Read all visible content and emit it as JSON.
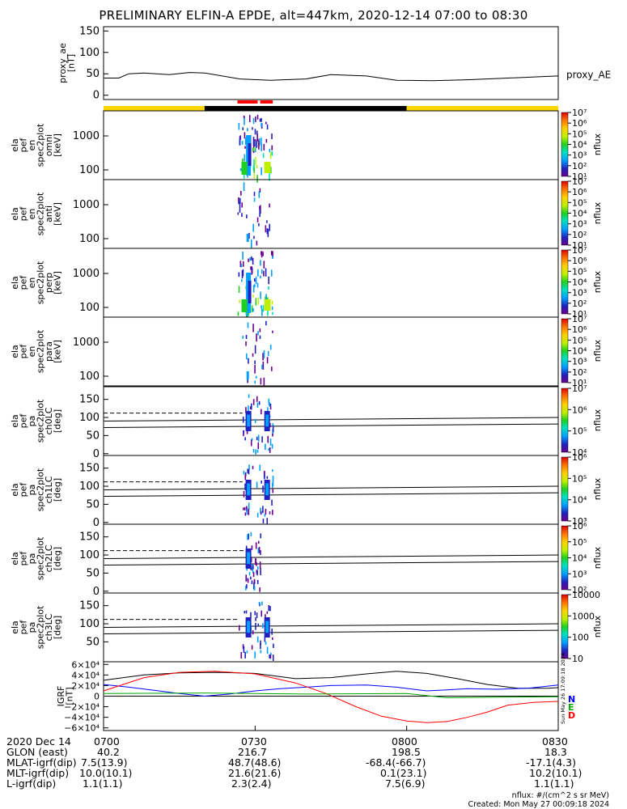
{
  "title": "PRELIMINARY ELFIN-A EPDE, alt=447km, 2020-12-14 07:00 to 08:30",
  "colors": {
    "orbit_day": "#ffd700",
    "orbit_night": "#000000",
    "orbit_flag": "#ff0000",
    "geo_x": "#000000",
    "geo_y": "#0000ff",
    "geo_z": "#ff0000",
    "ref_line": "#00aa00"
  },
  "chart_data": [
    {
      "id": "proxy_ae",
      "type": "line",
      "ylabel": "proxy_ae\n[nT]",
      "legend": "proxy_AE",
      "ylim": [
        -10,
        160
      ],
      "yticks": [
        "0",
        "50",
        "100",
        "150"
      ],
      "ytick_values": [
        0,
        50,
        100,
        150
      ],
      "series": [
        {
          "name": "proxy_AE",
          "x": [
            0,
            3,
            5,
            8,
            13,
            17,
            20,
            27,
            33,
            40,
            45,
            52,
            58,
            65,
            72,
            80,
            88,
            90
          ],
          "y": [
            40,
            40,
            50,
            52,
            48,
            53,
            52,
            38,
            35,
            38,
            48,
            45,
            35,
            34,
            36,
            40,
            44,
            45
          ]
        }
      ]
    },
    {
      "id": "orbit_bar",
      "type": "bar",
      "segments": [
        {
          "from": 0,
          "to": 20,
          "state": "day"
        },
        {
          "from": 20,
          "to": 60,
          "state": "night"
        },
        {
          "from": 60,
          "to": 90,
          "state": "day"
        }
      ],
      "flags": [
        {
          "from": 26.5,
          "to": 30.5
        },
        {
          "from": 31,
          "to": 33.5
        }
      ]
    },
    {
      "id": "en_omni",
      "type": "heatmap",
      "ylabel": "ela\npef\nen\nspec2plot\nomni\n[keV]",
      "yticks": [
        "100",
        "1000"
      ],
      "colorbar": "nflux",
      "cbar_ticks": [
        "10¹",
        "10²",
        "10³",
        "10⁴",
        "10⁵",
        "10⁶",
        "10⁷"
      ],
      "active_x": [
        26.5,
        33.5
      ]
    },
    {
      "id": "en_anti",
      "type": "heatmap",
      "ylabel": "ela\npef\nen\nspec2plot\nanti\n[keV]",
      "yticks": [
        "100",
        "1000"
      ],
      "colorbar": "nflux",
      "cbar_ticks": [
        "10¹",
        "10²",
        "10³",
        "10⁴",
        "10⁵",
        "10⁶",
        "10⁷"
      ],
      "active_x": [
        26.5,
        33.5
      ]
    },
    {
      "id": "en_perp",
      "type": "heatmap",
      "ylabel": "ela\npef\nen\nspec2plot\nperp\n[keV]",
      "yticks": [
        "100",
        "1000"
      ],
      "colorbar": "nflux",
      "cbar_ticks": [
        "10¹",
        "10²",
        "10³",
        "10⁴",
        "10⁵",
        "10⁶",
        "10⁷"
      ],
      "active_x": [
        26.5,
        33.5
      ]
    },
    {
      "id": "en_para",
      "type": "heatmap",
      "ylabel": "ela\npef\nen\nspec2plot\npara\n[keV]",
      "yticks": [
        "100",
        "1000"
      ],
      "colorbar": "nflux",
      "cbar_ticks": [
        "10¹",
        "10²",
        "10³",
        "10⁴",
        "10⁵",
        "10⁶",
        "10⁷"
      ],
      "active_x": [
        26.5,
        33.5
      ]
    },
    {
      "id": "pa_ch0",
      "type": "heatmap",
      "ylabel": "ela\npef\npa\nspec2plot\nch0LC\n[deg]",
      "ylim": [
        -5,
        185
      ],
      "yticks": [
        "0",
        "50",
        "100",
        "150"
      ],
      "ytick_values": [
        0,
        50,
        100,
        150
      ],
      "colorbar": "nflux",
      "cbar_ticks": [
        "10⁴",
        "10⁵",
        "10⁶",
        "10⁷"
      ],
      "lc_lines": {
        "x": [
          0,
          90
        ],
        "upper": [
          90,
          100
        ],
        "lower": [
          72,
          82
        ],
        "dashed_y": 112
      },
      "active_x": [
        27.5,
        33.5
      ]
    },
    {
      "id": "pa_ch1",
      "type": "heatmap",
      "ylabel": "ela\npef\npa\nspec2plot\nch1LC\n[deg]",
      "ylim": [
        -5,
        185
      ],
      "yticks": [
        "0",
        "50",
        "100",
        "150"
      ],
      "ytick_values": [
        0,
        50,
        100,
        150
      ],
      "colorbar": "nflux",
      "cbar_ticks": [
        "10³",
        "10⁴",
        "10⁵",
        "10⁶"
      ],
      "lc_lines": {
        "x": [
          0,
          90
        ],
        "upper": [
          90,
          100
        ],
        "lower": [
          72,
          82
        ],
        "dashed_y": 112
      },
      "active_x": [
        27.5,
        33.5
      ]
    },
    {
      "id": "pa_ch2",
      "type": "heatmap",
      "ylabel": "ela\npef\npa\nspec2plot\nch2LC\n[deg]",
      "ylim": [
        -5,
        185
      ],
      "yticks": [
        "0",
        "50",
        "100",
        "150"
      ],
      "ytick_values": [
        0,
        50,
        100,
        150
      ],
      "colorbar": "nflux",
      "cbar_ticks": [
        "10²",
        "10³",
        "10⁴",
        "10⁵",
        "10⁶"
      ],
      "lc_lines": {
        "x": [
          0,
          90
        ],
        "upper": [
          90,
          100
        ],
        "lower": [
          72,
          82
        ],
        "dashed_y": 112
      },
      "active_x": [
        28,
        31
      ]
    },
    {
      "id": "pa_ch3",
      "type": "heatmap",
      "ylabel": "ela\npef\npa\nspec2plot\nch3LC\n[deg]",
      "ylim": [
        -5,
        185
      ],
      "yticks": [
        "50",
        "100",
        "150"
      ],
      "ytick_values": [
        50,
        100,
        150
      ],
      "colorbar": "nflux",
      "cbar_ticks": [
        "10",
        "100",
        "1000",
        "10000"
      ],
      "lc_lines": {
        "x": [
          0,
          90
        ],
        "upper": [
          90,
          100
        ],
        "lower": [
          72,
          82
        ],
        "dashed_y": 112
      },
      "active_x": [
        26.5,
        33.5
      ]
    },
    {
      "id": "igrf",
      "type": "line",
      "ylabel": "IGRF\n[nT]",
      "ylim": [
        -65000,
        65000
      ],
      "yticks": [
        "−6×10⁴",
        "−4×10⁴",
        "−2×10⁴",
        "0",
        "2×10⁴",
        "4×10⁴",
        "6×10⁴"
      ],
      "ytick_values": [
        -60000,
        -40000,
        -20000,
        0,
        20000,
        40000,
        60000
      ],
      "legend_labels": [
        "N",
        "E",
        "D"
      ],
      "zero_line": 0,
      "series": [
        {
          "name": "N",
          "x": [
            0,
            8,
            15,
            23,
            30,
            38,
            45,
            52,
            58,
            64,
            70,
            76,
            82,
            88,
            90
          ],
          "y": [
            30000,
            40000,
            44000,
            45000,
            43000,
            33000,
            35000,
            42000,
            47000,
            43000,
            33000,
            22000,
            15000,
            15000,
            16000
          ]
        },
        {
          "name": "E",
          "x": [
            0,
            5,
            10,
            15,
            20,
            25,
            30,
            35,
            40,
            45,
            52,
            58,
            64,
            68,
            72,
            78,
            84,
            90
          ],
          "y": [
            22000,
            17000,
            11000,
            5000,
            0,
            4000,
            10000,
            14000,
            17000,
            20000,
            21000,
            17000,
            10000,
            12000,
            14000,
            13000,
            15000,
            21000
          ]
        },
        {
          "name": "D",
          "x": [
            0,
            8,
            15,
            22,
            30,
            38,
            44,
            50,
            55,
            60,
            64,
            68,
            72,
            76,
            80,
            85,
            90
          ],
          "y": [
            10000,
            35000,
            45000,
            47000,
            42000,
            25000,
            5000,
            -20000,
            -38000,
            -47000,
            -50000,
            -48000,
            -40000,
            -30000,
            -17000,
            -12000,
            -10000
          ]
        },
        {
          "name": "ref",
          "x": [
            0,
            20,
            40,
            60,
            68,
            78,
            90
          ],
          "y": [
            5000,
            6000,
            4000,
            5000,
            -3000,
            -2000,
            -1000
          ]
        }
      ]
    }
  ],
  "footer": {
    "rows": [
      {
        "label": "2020 Dec 14",
        "values": [
          "0700",
          "0730",
          "0800",
          "0830"
        ]
      },
      {
        "label": "GLON (east)",
        "values": [
          "40.2",
          "216.7",
          "198.5",
          "18.3"
        ]
      },
      {
        "label": "MLAT-igrf(dip)",
        "values": [
          "7.5(13.9)",
          "48.7(48.6)",
          "-68.4(-66.7)",
          "-17.1(4.3)"
        ]
      },
      {
        "label": "MLT-igrf(dip)",
        "values": [
          "10.0(10.1)",
          "21.6(21.6)",
          "0.1(23.1)",
          "10.2(10.1)"
        ]
      },
      {
        "label": "L-igrf(dip)",
        "values": [
          "1.1(1.1)",
          "2.3(2.4)",
          "7.5(6.9)",
          "1.1(1.1)"
        ]
      }
    ],
    "note_units": "nflux: #/(cm^2 s sr MeV)",
    "note_created": "Created: Mon May 27 00:09:18 2024",
    "side_stamp": "Sun May 26 17:09:18 2024"
  }
}
